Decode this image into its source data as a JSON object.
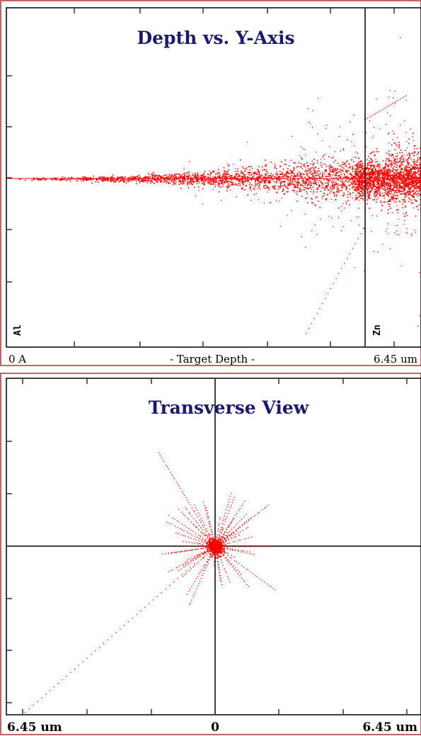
{
  "chart_data": [
    {
      "type": "scatter",
      "title": "Depth vs. Y-Axis",
      "xlabel": "- Target Depth -",
      "x_tick_labels": {
        "left": "0 A",
        "right": "6.45 um"
      },
      "layer_labels": [
        "Al",
        "Zn"
      ],
      "xlim": [
        0,
        6.45
      ],
      "x_unit": "um",
      "layer_boundary_x": 5.7,
      "point_color": "#ff0000",
      "description_of_distribution": "ions spread along y=0 centerline, widening with depth, dense cloud near boundary"
    },
    {
      "type": "scatter",
      "title": "Transverse View",
      "x_tick_labels": {
        "left": "6.45 um",
        "center": "0",
        "right": "6.45 um"
      },
      "xlim": [
        -6.45,
        6.45
      ],
      "ylim": [
        -6.45,
        6.45
      ],
      "x_unit": "um",
      "crosshair": [
        0,
        0
      ],
      "point_color": "#ff0000"
    }
  ],
  "colors": {
    "title": "#1a1a6e",
    "points": "#ff0000",
    "frame": "#c0392b"
  }
}
